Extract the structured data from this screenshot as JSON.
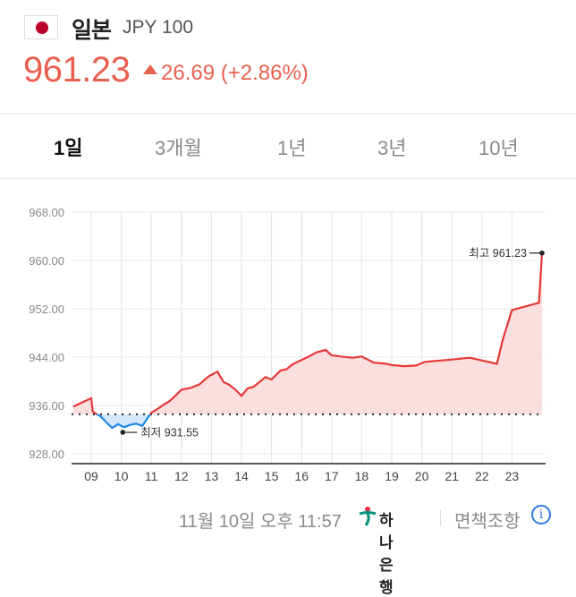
{
  "header": {
    "flag_icon": "japan-flag-icon",
    "country": "일본",
    "currency_code": "JPY 100",
    "price": "961.23",
    "change_direction": "up",
    "change": "26.69 (+2.86%)",
    "color_up": "#e8604f"
  },
  "tabs": [
    {
      "label": "1일",
      "active": true
    },
    {
      "label": "3개월",
      "active": false
    },
    {
      "label": "1년",
      "active": false
    },
    {
      "label": "3년",
      "active": false
    },
    {
      "label": "10년",
      "active": false
    }
  ],
  "chart_data": {
    "type": "area",
    "title": "",
    "xlabel": "",
    "ylabel": "",
    "ylim": [
      928,
      968
    ],
    "yticks": [
      "968.00",
      "960.00",
      "952.00",
      "944.00",
      "936.00",
      "928.00"
    ],
    "xticks": [
      "09",
      "10",
      "11",
      "12",
      "13",
      "14",
      "15",
      "16",
      "17",
      "18",
      "19",
      "20",
      "21",
      "22",
      "23"
    ],
    "grid": true,
    "baseline": 934.54,
    "baseline_style": "dotted",
    "color_above": "#e53935",
    "color_below": "#1e88e5",
    "fill_above": "#fbdede",
    "fill_below": "#d6e9fb",
    "series": [
      {
        "name": "JPY 100 (1일)",
        "x": [
          8.4,
          9.0,
          9.05,
          9.2,
          9.3,
          9.4,
          9.5,
          9.7,
          9.9,
          10.0,
          10.1,
          10.3,
          10.5,
          10.7,
          10.9,
          11.0,
          11.2,
          11.4,
          11.6,
          11.8,
          12.0,
          12.3,
          12.6,
          12.9,
          13.2,
          13.4,
          13.6,
          13.8,
          14.0,
          14.2,
          14.4,
          14.6,
          14.8,
          15.0,
          15.3,
          15.5,
          15.7,
          15.9,
          16.2,
          16.5,
          16.8,
          17.0,
          17.3,
          17.7,
          18.0,
          18.4,
          18.8,
          19.0,
          19.4,
          19.8,
          20.1,
          20.3,
          21.0,
          21.6,
          22.5,
          22.7,
          23.0,
          23.9,
          24.0
        ],
        "values": [
          935.8,
          937.2,
          935.0,
          934.5,
          934.2,
          933.8,
          933.2,
          932.3,
          932.9,
          932.6,
          932.4,
          932.8,
          933.0,
          932.6,
          934.1,
          934.8,
          935.4,
          936.1,
          936.7,
          937.6,
          938.6,
          938.9,
          939.5,
          940.8,
          941.6,
          939.9,
          939.4,
          938.6,
          937.6,
          938.8,
          939.1,
          939.9,
          940.7,
          940.3,
          941.8,
          942.0,
          942.8,
          943.3,
          944.0,
          944.8,
          945.2,
          944.3,
          944.1,
          943.9,
          944.1,
          943.1,
          942.9,
          942.7,
          942.5,
          942.6,
          943.2,
          943.3,
          943.6,
          943.9,
          942.9,
          947.0,
          951.8,
          953.0,
          961.23
        ]
      }
    ],
    "annotations": [
      {
        "label": "최고 961.23",
        "x": 24.0,
        "y": 961.23
      },
      {
        "label": "최저 931.55",
        "x": 10.05,
        "y": 931.55
      }
    ]
  },
  "footer": {
    "timestamp": "11월 10일 오후 11:57",
    "bank_logo_icon": "hana-bank-logo-icon",
    "bank_name": "하나은행",
    "disclaimer": "면책조항",
    "info_icon": "info-icon",
    "info_glyph": "i"
  }
}
